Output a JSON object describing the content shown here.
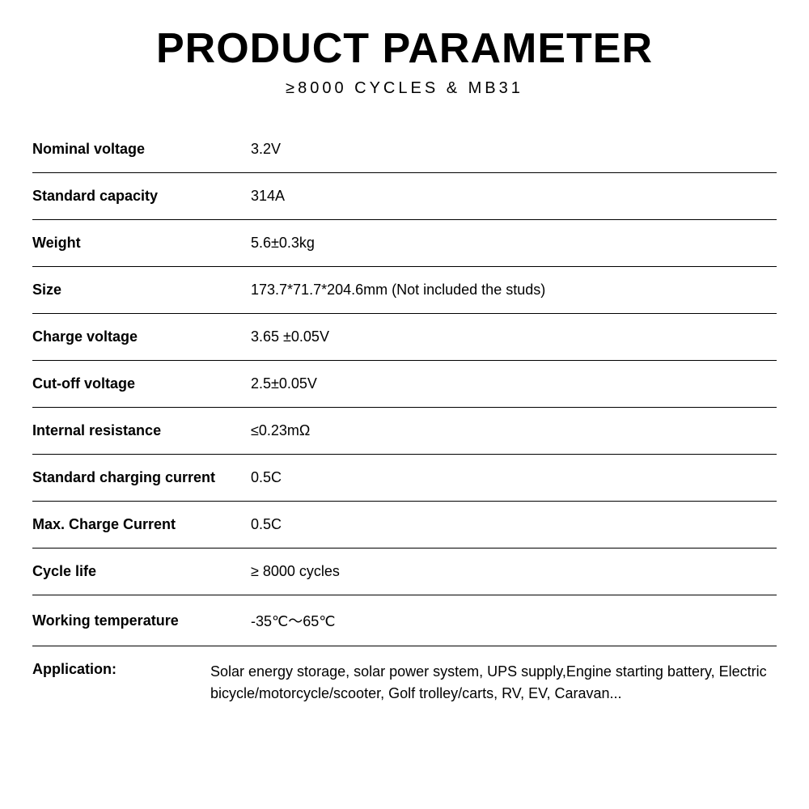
{
  "header": {
    "title": "PRODUCT PARAMETER",
    "subtitle": "≥8000 CYCLES & MB31"
  },
  "specs": [
    {
      "label": "Nominal voltage",
      "value": "3.2V"
    },
    {
      "label": "Standard capacity",
      "value": "314A"
    },
    {
      "label": "Weight",
      "value": "5.6±0.3kg"
    },
    {
      "label": "Size",
      "value": "173.7*71.7*204.6mm (Not included the studs)"
    },
    {
      "label": "Charge voltage",
      "value": "3.65 ±0.05V"
    },
    {
      "label": "Cut-off voltage",
      "value": "2.5±0.05V"
    },
    {
      "label": "Internal resistance",
      "value": "≤0.23mΩ"
    },
    {
      "label": "Standard charging current",
      "value": "0.5C"
    },
    {
      "label": "Max. Charge Current",
      "value": "0.5C"
    },
    {
      "label": "Cycle life",
      "value": "≥ 8000 cycles"
    },
    {
      "label": "Working temperature",
      "value": "-35℃～65℃"
    }
  ],
  "application": {
    "label": "Application:",
    "value": "Solar energy storage, solar power system, UPS supply,Engine starting battery, Electric bicycle/motorcycle/scooter, Golf trolley/carts, RV, EV, Caravan..."
  },
  "styling": {
    "title_fontsize": 52,
    "title_fontweight": 900,
    "subtitle_fontsize": 20,
    "subtitle_letterspacing": 4,
    "label_fontsize": 18,
    "label_fontweight": 700,
    "value_fontsize": 18,
    "value_fontweight": 400,
    "label_column_width": 270,
    "row_padding_vertical": 18,
    "border_color": "#000000",
    "text_color": "#000000",
    "background_color": "#ffffff"
  }
}
